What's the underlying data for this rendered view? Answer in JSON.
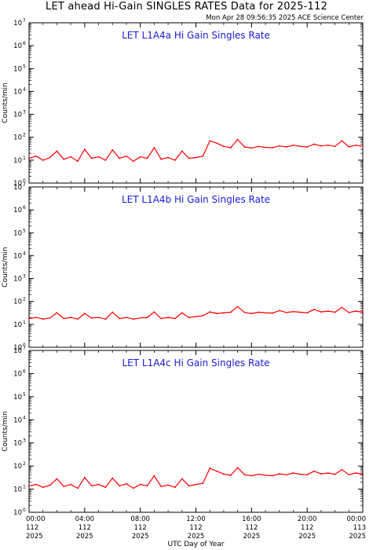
{
  "title": "LET ahead Hi-Gain SINGLES RATES Data for 2025-112",
  "timestamp": "Mon Apr 28 09:56:35 2025 ACE Science Center",
  "colors": {
    "series": "#ff0000",
    "panel_title": "#1a1ad6",
    "frame": "#000000"
  },
  "chart_data": [
    {
      "type": "line",
      "title": "LET L1A4a Hi Gain Singles Rate",
      "ylabel": "Counts/min",
      "yscale": "log",
      "ylim": [
        1,
        10000000
      ],
      "y_ticks": [
        "10",
        "10",
        "10",
        "10",
        "10",
        "10",
        "10",
        "10"
      ],
      "y_tick_exponents": [
        "0",
        "1",
        "2",
        "3",
        "4",
        "5",
        "6",
        "7"
      ],
      "xlim": [
        0,
        24
      ],
      "series": [
        {
          "x": [
            0,
            0.5,
            1,
            1.5,
            2,
            2.5,
            3,
            3.5,
            4,
            4.5,
            5,
            5.5,
            6,
            6.5,
            7,
            7.5,
            8,
            8.5,
            9,
            9.5,
            10,
            10.5,
            11,
            11.5,
            12,
            12.5,
            13,
            13.5,
            14,
            14.5,
            15,
            15.5,
            16,
            16.5,
            17,
            17.5,
            18,
            18.5,
            19,
            19.5,
            20,
            20.5,
            21,
            21.5,
            22,
            22.5,
            23,
            23.5,
            24
          ],
          "y": [
            12,
            15,
            10,
            13,
            25,
            11,
            14,
            9,
            30,
            12,
            14,
            10,
            28,
            12,
            15,
            9,
            14,
            12,
            35,
            11,
            13,
            10,
            25,
            12,
            13,
            15,
            70,
            55,
            40,
            35,
            80,
            38,
            34,
            40,
            36,
            35,
            42,
            38,
            45,
            40,
            38,
            50,
            42,
            45,
            40,
            70,
            38,
            45,
            40
          ]
        }
      ]
    },
    {
      "type": "line",
      "title": "LET L1A4b Hi Gain Singles Rate",
      "ylabel": "Counts/min",
      "yscale": "log",
      "ylim": [
        1,
        10000000
      ],
      "y_ticks": [
        "10",
        "10",
        "10",
        "10",
        "10",
        "10",
        "10",
        "10"
      ],
      "y_tick_exponents": [
        "0",
        "1",
        "2",
        "3",
        "4",
        "5",
        "6",
        "7"
      ],
      "xlim": [
        0,
        24
      ],
      "series": [
        {
          "x": [
            0,
            0.5,
            1,
            1.5,
            2,
            2.5,
            3,
            3.5,
            4,
            4.5,
            5,
            5.5,
            6,
            6.5,
            7,
            7.5,
            8,
            8.5,
            9,
            9.5,
            10,
            10.5,
            11,
            11.5,
            12,
            12.5,
            13,
            13.5,
            14,
            14.5,
            15,
            15.5,
            16,
            16.5,
            17,
            17.5,
            18,
            18.5,
            19,
            19.5,
            20,
            20.5,
            21,
            21.5,
            22,
            22.5,
            23,
            23.5,
            24
          ],
          "y": [
            18,
            20,
            17,
            19,
            32,
            18,
            20,
            17,
            30,
            19,
            20,
            17,
            34,
            18,
            20,
            17,
            19,
            20,
            35,
            18,
            20,
            18,
            32,
            20,
            22,
            24,
            35,
            30,
            32,
            34,
            60,
            33,
            30,
            34,
            32,
            31,
            40,
            33,
            36,
            34,
            32,
            45,
            35,
            38,
            34,
            55,
            33,
            38,
            34
          ]
        }
      ]
    },
    {
      "type": "line",
      "title": "LET L1A4c Hi Gain Singles Rate",
      "ylabel": "Counts/min",
      "yscale": "log",
      "ylim": [
        1,
        10000000
      ],
      "y_ticks": [
        "10",
        "10",
        "10",
        "10",
        "10",
        "10",
        "10",
        "10"
      ],
      "y_tick_exponents": [
        "0",
        "1",
        "2",
        "3",
        "4",
        "5",
        "6",
        "7"
      ],
      "xlim": [
        0,
        24
      ],
      "xlabel": "UTC Day of Year",
      "x_ticks": [
        {
          "time": "00:00",
          "doy": "112",
          "year": "2025"
        },
        {
          "time": "04:00",
          "doy": "112",
          "year": "2025"
        },
        {
          "time": "08:00",
          "doy": "112",
          "year": "2025"
        },
        {
          "time": "12:00",
          "doy": "112",
          "year": "2025"
        },
        {
          "time": "16:00",
          "doy": "112",
          "year": "2025"
        },
        {
          "time": "20:00",
          "doy": "112",
          "year": "2025"
        },
        {
          "time": "00:00",
          "doy": "113",
          "year": "2025"
        }
      ],
      "series": [
        {
          "x": [
            0,
            0.5,
            1,
            1.5,
            2,
            2.5,
            3,
            3.5,
            4,
            4.5,
            5,
            5.5,
            6,
            6.5,
            7,
            7.5,
            8,
            8.5,
            9,
            9.5,
            10,
            10.5,
            11,
            11.5,
            12,
            12.5,
            13,
            13.5,
            14,
            14.5,
            15,
            15.5,
            16,
            16.5,
            17,
            17.5,
            18,
            18.5,
            19,
            19.5,
            20,
            20.5,
            21,
            21.5,
            22,
            22.5,
            23,
            23.5,
            24
          ],
          "y": [
            14,
            16,
            12,
            15,
            28,
            13,
            16,
            11,
            32,
            14,
            16,
            12,
            30,
            14,
            17,
            11,
            16,
            14,
            38,
            13,
            15,
            12,
            28,
            14,
            16,
            18,
            80,
            60,
            45,
            40,
            85,
            42,
            38,
            44,
            40,
            38,
            46,
            42,
            50,
            44,
            42,
            60,
            46,
            50,
            44,
            70,
            42,
            50,
            44
          ]
        }
      ]
    }
  ]
}
